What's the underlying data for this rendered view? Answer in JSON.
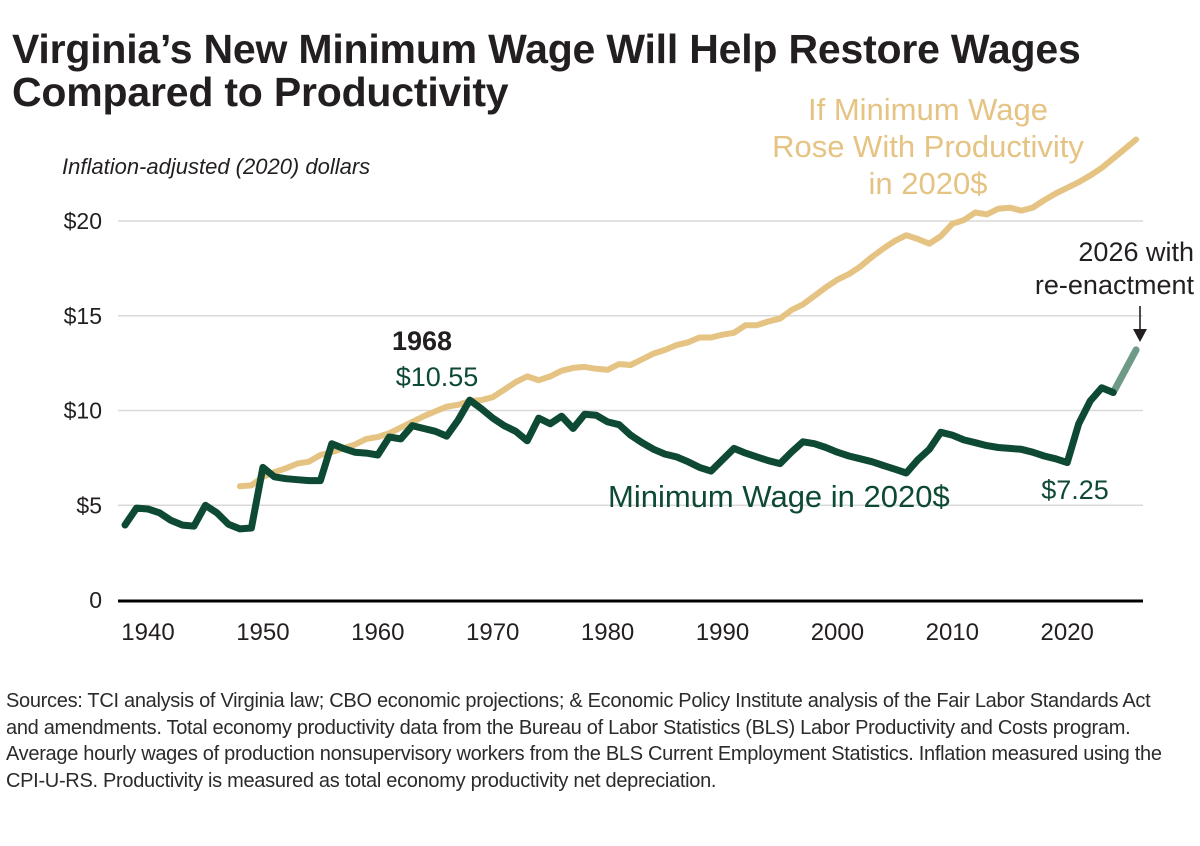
{
  "header": {
    "title_line1": "Virginia’s New Minimum Wage Will Help Restore Wages",
    "title_line2": "Compared to Productivity",
    "subtitle": "Inflation-adjusted (2020) dollars"
  },
  "footer": {
    "sources": "Sources: TCI analysis of Virginia law; CBO economic projections; & Economic Policy Institute analysis of the Fair Labor Standards Act and amendments. Total economy productivity data from the Bureau of Labor Statistics (BLS) Labor Productivity and Costs program. Average hourly wages of production nonsupervisory workers from the BLS Current Employment Statistics. Inflation measured using the CPI-U-RS. Productivity is measured as total economy productivity net depreciation."
  },
  "colors": {
    "min_wage": "#0e4a33",
    "projection": "#6f9a88",
    "productivity": "#e5c383",
    "gridline": "#d9d9d9",
    "axis": "#000000"
  },
  "chart_data": {
    "type": "line",
    "title": "Virginia’s New Minimum Wage Will Help Restore Wages Compared to Productivity",
    "xlabel": "",
    "ylabel": "Inflation-adjusted (2020) dollars",
    "xlim": [
      1938,
      2026
    ],
    "ylim": [
      0,
      25
    ],
    "grid": true,
    "x_ticks": [
      1940,
      1950,
      1960,
      1970,
      1980,
      1990,
      2000,
      2010,
      2020
    ],
    "x_tick_labels": [
      "1940",
      "1950",
      "1960",
      "1970",
      "1980",
      "1990",
      "2000",
      "2010",
      "2020"
    ],
    "y_ticks": [
      0,
      5,
      10,
      15,
      20
    ],
    "y_tick_labels": [
      "0",
      "$5",
      "$10",
      "$15",
      "$20"
    ],
    "series": [
      {
        "name": "Minimum Wage in 2020$",
        "x": [
          1938,
          1939,
          1940,
          1941,
          1942,
          1943,
          1944,
          1945,
          1946,
          1947,
          1948,
          1949,
          1950,
          1951,
          1952,
          1953,
          1954,
          1955,
          1956,
          1957,
          1958,
          1959,
          1960,
          1961,
          1962,
          1963,
          1964,
          1965,
          1966,
          1967,
          1968,
          1969,
          1970,
          1971,
          1972,
          1973,
          1974,
          1975,
          1976,
          1977,
          1978,
          1979,
          1980,
          1981,
          1982,
          1983,
          1984,
          1985,
          1986,
          1987,
          1988,
          1989,
          1990,
          1991,
          1992,
          1993,
          1994,
          1995,
          1996,
          1997,
          1998,
          1999,
          2000,
          2001,
          2002,
          2003,
          2004,
          2005,
          2006,
          2007,
          2008,
          2009,
          2010,
          2011,
          2012,
          2013,
          2014,
          2015,
          2016,
          2017,
          2018,
          2019,
          2020,
          2021,
          2022,
          2023,
          2024
        ],
        "values": [
          3.96,
          4.85,
          4.8,
          4.6,
          4.2,
          3.95,
          3.9,
          5.0,
          4.6,
          4.0,
          3.75,
          3.8,
          7.0,
          6.5,
          6.4,
          6.35,
          6.3,
          6.3,
          8.25,
          8.0,
          7.8,
          7.75,
          7.65,
          8.6,
          8.5,
          9.2,
          9.05,
          8.9,
          8.65,
          9.5,
          10.55,
          10.1,
          9.6,
          9.2,
          8.9,
          8.4,
          9.6,
          9.3,
          9.7,
          9.05,
          9.8,
          9.75,
          9.4,
          9.25,
          8.7,
          8.3,
          7.95,
          7.7,
          7.55,
          7.3,
          7.0,
          6.8,
          7.4,
          8.0,
          7.75,
          7.55,
          7.35,
          7.2,
          7.8,
          8.35,
          8.25,
          8.05,
          7.8,
          7.6,
          7.45,
          7.3,
          7.1,
          6.9,
          6.7,
          7.4,
          7.95,
          8.85,
          8.7,
          8.45,
          8.3,
          8.15,
          8.05,
          8.0,
          7.95,
          7.8,
          7.6,
          7.45,
          7.25,
          9.3,
          10.5,
          11.2,
          10.95
        ]
      },
      {
        "name": "2026 with re-enactment",
        "x": [
          2024,
          2026
        ],
        "values": [
          10.95,
          13.2
        ]
      },
      {
        "name": "If Minimum Wage Rose With Productivity in 2020$",
        "x": [
          1948,
          1949,
          1950,
          1951,
          1952,
          1953,
          1954,
          1955,
          1956,
          1957,
          1958,
          1959,
          1960,
          1961,
          1962,
          1963,
          1964,
          1965,
          1966,
          1967,
          1968,
          1969,
          1970,
          1971,
          1972,
          1973,
          1974,
          1975,
          1976,
          1977,
          1978,
          1979,
          1980,
          1981,
          1982,
          1983,
          1984,
          1985,
          1986,
          1987,
          1988,
          1989,
          1990,
          1991,
          1992,
          1993,
          1994,
          1995,
          1996,
          1997,
          1998,
          1999,
          2000,
          2001,
          2002,
          2003,
          2004,
          2005,
          2006,
          2007,
          2008,
          2009,
          2010,
          2011,
          2012,
          2013,
          2014,
          2015,
          2016,
          2017,
          2018,
          2019,
          2020,
          2021,
          2022,
          2023,
          2024,
          2025,
          2026
        ],
        "values": [
          6.0,
          6.05,
          6.5,
          6.75,
          6.95,
          7.2,
          7.3,
          7.65,
          7.8,
          8.0,
          8.2,
          8.5,
          8.6,
          8.8,
          9.1,
          9.4,
          9.7,
          9.95,
          10.2,
          10.3,
          10.5,
          10.55,
          10.7,
          11.1,
          11.5,
          11.8,
          11.6,
          11.8,
          12.1,
          12.25,
          12.3,
          12.2,
          12.15,
          12.45,
          12.4,
          12.7,
          13.0,
          13.2,
          13.45,
          13.6,
          13.85,
          13.85,
          14.0,
          14.1,
          14.5,
          14.5,
          14.7,
          14.85,
          15.3,
          15.6,
          16.05,
          16.5,
          16.9,
          17.2,
          17.6,
          18.1,
          18.55,
          18.95,
          19.25,
          19.05,
          18.8,
          19.2,
          19.85,
          20.05,
          20.45,
          20.35,
          20.65,
          20.7,
          20.55,
          20.7,
          21.1,
          21.45,
          21.75,
          22.05,
          22.4,
          22.8,
          23.3,
          23.8,
          24.3
        ]
      }
    ],
    "annotations": [
      {
        "text": "If Minimum Wage",
        "series": "productivity"
      },
      {
        "text": "Rose With Productivity",
        "series": "productivity"
      },
      {
        "text": "in 2020$",
        "series": "productivity"
      },
      {
        "text": "1968",
        "series": "min_wage"
      },
      {
        "text": "$10.55",
        "series": "min_wage"
      },
      {
        "text": "Minimum Wage in 2020$",
        "series": "min_wage"
      },
      {
        "text": "$7.25",
        "series": "min_wage"
      },
      {
        "text": "2026 with",
        "series": "projection"
      },
      {
        "text": "re-enactment",
        "series": "projection"
      }
    ]
  }
}
